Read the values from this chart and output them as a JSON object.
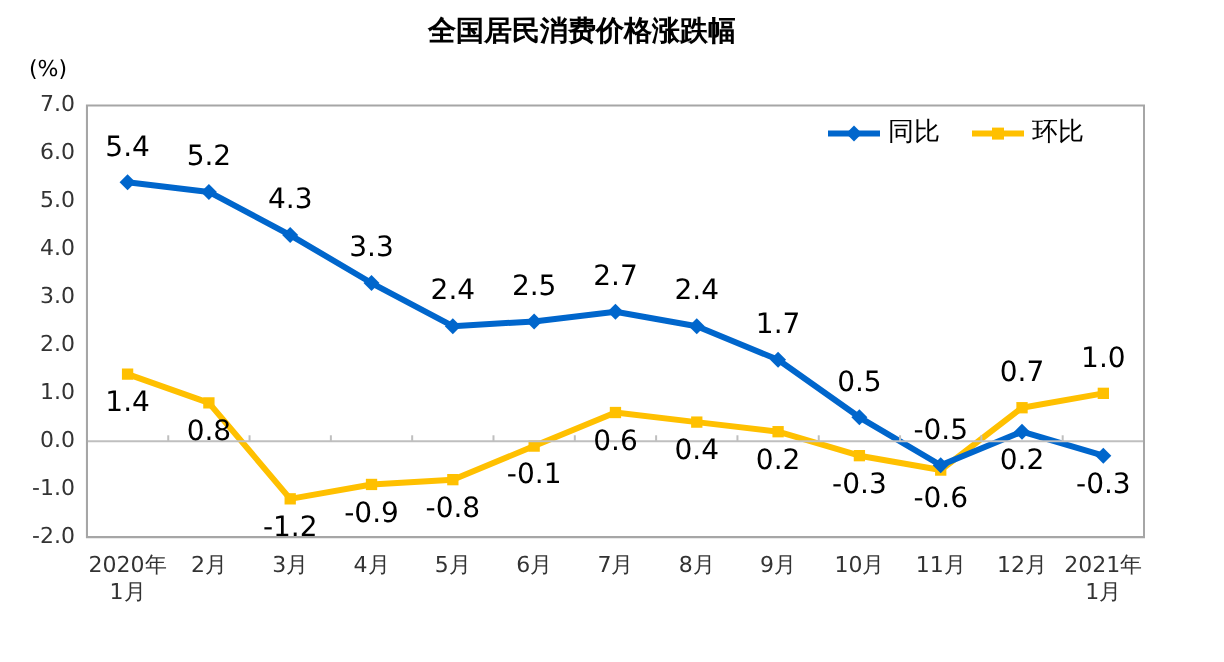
{
  "chart_data": {
    "type": "line",
    "title": "全国居民消费价格涨跌幅",
    "ylabel": "(%)",
    "categories": [
      "2020年\n1月",
      "2月",
      "3月",
      "4月",
      "5月",
      "6月",
      "7月",
      "8月",
      "9月",
      "10月",
      "11月",
      "12月",
      "2021年\n1月"
    ],
    "series": [
      {
        "name": "同比",
        "color": "#0066cc",
        "marker": "diamond",
        "values": [
          5.4,
          5.2,
          4.3,
          3.3,
          2.4,
          2.5,
          2.7,
          2.4,
          1.7,
          0.5,
          -0.5,
          0.2,
          -0.3
        ],
        "value_labels": [
          "5.4",
          "5.2",
          "4.3",
          "3.3",
          "2.4",
          "2.5",
          "2.7",
          "2.4",
          "1.7",
          "0.5",
          "-0.5",
          "0.2",
          "-0.3"
        ]
      },
      {
        "name": "环比",
        "color": "#ffc000",
        "marker": "square",
        "values": [
          1.4,
          0.8,
          -1.2,
          -0.9,
          -0.8,
          -0.1,
          0.6,
          0.4,
          0.2,
          -0.3,
          -0.6,
          0.7,
          1.0
        ],
        "value_labels": [
          "1.4",
          "0.8",
          "-1.2",
          "-0.9",
          "-0.8",
          "-0.1",
          "0.6",
          "0.4",
          "0.2",
          "-0.3",
          "-0.6",
          "0.7",
          "1.0"
        ]
      }
    ],
    "ylim": [
      -2,
      7
    ],
    "yticks": [
      {
        "value": -2,
        "label": "-2.0"
      },
      {
        "value": -1,
        "label": "-1.0"
      },
      {
        "value": 0,
        "label": "0.0"
      },
      {
        "value": 1,
        "label": "1.0"
      },
      {
        "value": 2,
        "label": "2.0"
      },
      {
        "value": 3,
        "label": "3.0"
      },
      {
        "value": 4,
        "label": "4.0"
      },
      {
        "value": 5,
        "label": "5.0"
      },
      {
        "value": 6,
        "label": "6.0"
      },
      {
        "value": 7,
        "label": "7.0"
      }
    ],
    "ref_lines": [
      {
        "axis": "y",
        "value": 0,
        "color": "#bfbfbf"
      }
    ],
    "grid": false,
    "legend": "top right",
    "line_style": "solid"
  }
}
